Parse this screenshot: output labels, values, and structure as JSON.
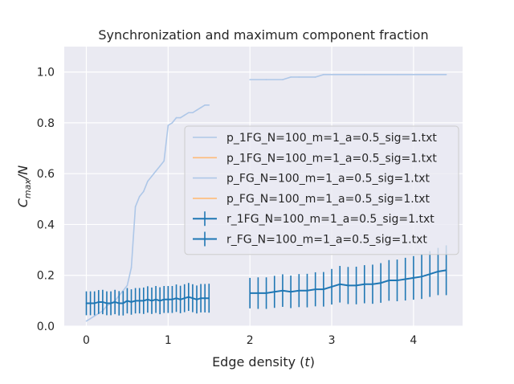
{
  "chart_data": {
    "type": "line",
    "title": "Synchronization and maximum component fraction",
    "xlabel_prefix": "Edge density (",
    "xlabel_var": "t",
    "xlabel_suffix": ")",
    "ylabel_main": "C",
    "ylabel_sub": "max",
    "ylabel_suffix": "/N",
    "xlim": [
      -0.27,
      4.6
    ],
    "ylim": [
      0.0,
      1.1
    ],
    "xticks": [
      0,
      1,
      2,
      3,
      4
    ],
    "xtick_labels": [
      "0",
      "1",
      "2",
      "3",
      "4"
    ],
    "yticks": [
      0.0,
      0.2,
      0.4,
      0.6,
      0.8,
      1.0
    ],
    "ytick_labels": [
      "0.0",
      "0.2",
      "0.4",
      "0.6",
      "0.8",
      "1.0"
    ],
    "grid": true,
    "legend_position": "center-right",
    "colors": {
      "background": "#eaeaf2",
      "grid": "#ffffff",
      "p_blue": "#aec7e8",
      "p_orange": "#ffbb78",
      "r_blue": "#1f77b4"
    },
    "series": [
      {
        "name": "p_1FG_N=100_m=1_a=0.5_sig=1.txt",
        "kind": "line",
        "color": "#aec7e8",
        "x": [
          0,
          0.05,
          0.1,
          0.15,
          0.2,
          0.25,
          0.3,
          0.35,
          0.4,
          0.45,
          0.5,
          0.55,
          0.6,
          0.65,
          0.7,
          0.75,
          0.8,
          0.85,
          0.9,
          0.95,
          1.0,
          1.05,
          1.1,
          1.15,
          1.2,
          1.25,
          1.3,
          1.35,
          1.4,
          1.45,
          1.5
        ],
        "y": [
          0.02,
          0.03,
          0.04,
          0.05,
          0.06,
          0.08,
          0.09,
          0.1,
          0.12,
          0.14,
          0.16,
          0.23,
          0.47,
          0.51,
          0.53,
          0.57,
          0.59,
          0.61,
          0.63,
          0.65,
          0.79,
          0.8,
          0.82,
          0.82,
          0.83,
          0.84,
          0.84,
          0.85,
          0.86,
          0.87,
          0.87
        ]
      },
      {
        "name": "p_1FG_N=100_m=1_a=0.5_sig=1.txt",
        "kind": "line",
        "color": "#ffbb78",
        "x": [],
        "y": []
      },
      {
        "name": "p_FG_N=100_m=1_a=0.5_sig=1.txt",
        "kind": "line",
        "color": "#aec7e8",
        "x": [
          2.0,
          2.2,
          2.4,
          2.5,
          2.6,
          2.8,
          2.9,
          3.0,
          3.2,
          3.4,
          3.6,
          3.8,
          4.0,
          4.2,
          4.4
        ],
        "y": [
          0.97,
          0.97,
          0.97,
          0.98,
          0.98,
          0.98,
          0.99,
          0.99,
          0.99,
          0.99,
          0.99,
          0.99,
          0.99,
          0.99,
          0.99
        ]
      },
      {
        "name": "p_FG_N=100_m=1_a=0.5_sig=1.txt",
        "kind": "line",
        "color": "#ffbb78",
        "x": [],
        "y": []
      },
      {
        "name": "r_1FG_N=100_m=1_a=0.5_sig=1.txt",
        "kind": "errorbar",
        "color": "#1f77b4",
        "x": [
          0,
          0.05,
          0.1,
          0.15,
          0.2,
          0.25,
          0.3,
          0.35,
          0.4,
          0.45,
          0.5,
          0.55,
          0.6,
          0.65,
          0.7,
          0.75,
          0.8,
          0.85,
          0.9,
          0.95,
          1.0,
          1.05,
          1.1,
          1.15,
          1.2,
          1.25,
          1.3,
          1.35,
          1.4,
          1.45,
          1.5
        ],
        "y": [
          0.09,
          0.09,
          0.09,
          0.095,
          0.095,
          0.09,
          0.09,
          0.095,
          0.09,
          0.09,
          0.1,
          0.095,
          0.1,
          0.1,
          0.1,
          0.105,
          0.1,
          0.105,
          0.1,
          0.105,
          0.105,
          0.105,
          0.11,
          0.105,
          0.11,
          0.115,
          0.11,
          0.105,
          0.11,
          0.11,
          0.11
        ],
        "err": [
          0.047,
          0.047,
          0.047,
          0.047,
          0.048,
          0.047,
          0.047,
          0.048,
          0.048,
          0.048,
          0.05,
          0.05,
          0.05,
          0.05,
          0.052,
          0.052,
          0.052,
          0.053,
          0.053,
          0.053,
          0.053,
          0.053,
          0.054,
          0.054,
          0.055,
          0.055,
          0.055,
          0.055,
          0.056,
          0.056,
          0.057
        ]
      },
      {
        "name": "r_FG_N=100_m=1_a=0.5_sig=1.txt",
        "kind": "errorbar",
        "color": "#1f77b4",
        "x": [
          2.0,
          2.1,
          2.2,
          2.3,
          2.4,
          2.5,
          2.6,
          2.7,
          2.8,
          2.9,
          3.0,
          3.1,
          3.2,
          3.3,
          3.4,
          3.5,
          3.6,
          3.7,
          3.8,
          3.9,
          4.0,
          4.1,
          4.2,
          4.3,
          4.4
        ],
        "y": [
          0.13,
          0.13,
          0.13,
          0.135,
          0.14,
          0.135,
          0.14,
          0.14,
          0.145,
          0.145,
          0.155,
          0.165,
          0.16,
          0.16,
          0.165,
          0.165,
          0.17,
          0.18,
          0.18,
          0.185,
          0.19,
          0.195,
          0.205,
          0.215,
          0.22
        ],
        "err": [
          0.06,
          0.062,
          0.062,
          0.063,
          0.064,
          0.064,
          0.065,
          0.066,
          0.067,
          0.068,
          0.07,
          0.072,
          0.073,
          0.074,
          0.075,
          0.077,
          0.078,
          0.08,
          0.082,
          0.084,
          0.086,
          0.088,
          0.09,
          0.093,
          0.098
        ]
      }
    ]
  }
}
